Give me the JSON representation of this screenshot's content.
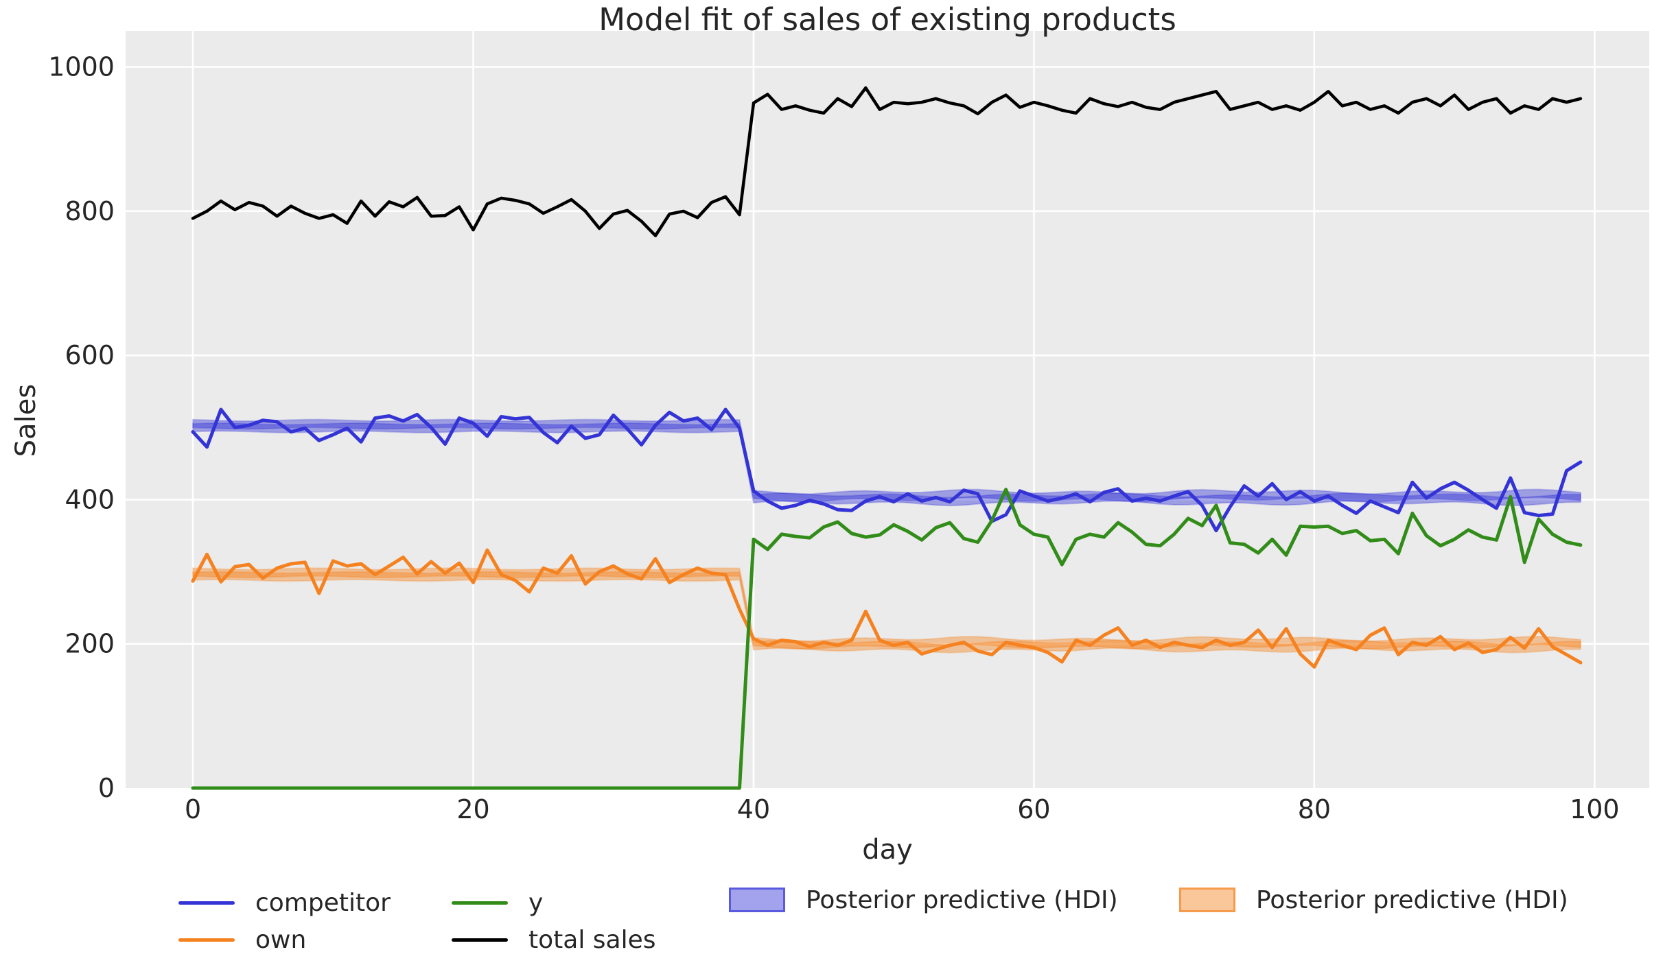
{
  "title": "Model fit of sales of existing products",
  "axes": {
    "xlabel": "day",
    "ylabel": "Sales"
  },
  "colors": {
    "figure_bg": "#ffffff",
    "plot_bg": "#ebebeb",
    "grid": "#ffffff",
    "text": "#262626",
    "competitor": "#3333d6",
    "own": "#f58220",
    "y": "#328c19",
    "total_sales": "#000000"
  },
  "legend": {
    "items": [
      {
        "label": "competitor",
        "type": "line",
        "color": "#3333d6"
      },
      {
        "label": "own",
        "type": "line",
        "color": "#f58220"
      },
      {
        "label": "y",
        "type": "line",
        "color": "#328c19"
      },
      {
        "label": "total sales",
        "type": "line",
        "color": "#000000"
      },
      {
        "label": "Posterior predictive (HDI)",
        "type": "patch",
        "color": "#3333d6"
      },
      {
        "label": "Posterior predictive (HDI)",
        "type": "patch",
        "color": "#f58220"
      }
    ]
  },
  "chart_data": {
    "type": "line",
    "title": "Model fit of sales of existing products",
    "xlabel": "day",
    "ylabel": "Sales",
    "x_ticks": [
      0,
      20,
      40,
      60,
      80,
      100
    ],
    "y_ticks": [
      0,
      200,
      400,
      600,
      800,
      1000
    ],
    "xlim": [
      -4.8,
      103.9
    ],
    "ylim": [
      0,
      1050
    ],
    "grid": true,
    "x": [
      0,
      1,
      2,
      3,
      4,
      5,
      6,
      7,
      8,
      9,
      10,
      11,
      12,
      13,
      14,
      15,
      16,
      17,
      18,
      19,
      20,
      21,
      22,
      23,
      24,
      25,
      26,
      27,
      28,
      29,
      30,
      31,
      32,
      33,
      34,
      35,
      36,
      37,
      38,
      39,
      40,
      41,
      42,
      43,
      44,
      45,
      46,
      47,
      48,
      49,
      50,
      51,
      52,
      53,
      54,
      55,
      56,
      57,
      58,
      59,
      60,
      61,
      62,
      63,
      64,
      65,
      66,
      67,
      68,
      69,
      70,
      71,
      72,
      73,
      74,
      75,
      76,
      77,
      78,
      79,
      80,
      81,
      82,
      83,
      84,
      85,
      86,
      87,
      88,
      89,
      90,
      91,
      92,
      93,
      94,
      95,
      96,
      97,
      98,
      99
    ],
    "series": [
      {
        "name": "competitor",
        "color": "#3333d6",
        "values": [
          494,
          473,
          525,
          500,
          503,
          510,
          508,
          494,
          499,
          482,
          490,
          499,
          480,
          513,
          516,
          509,
          518,
          500,
          477,
          513,
          506,
          488,
          515,
          512,
          514,
          493,
          479,
          502,
          485,
          490,
          517,
          498,
          476,
          503,
          521,
          509,
          513,
          497,
          525,
          499,
          412,
          398,
          388,
          392,
          399,
          394,
          386,
          385,
          398,
          404,
          397,
          408,
          398,
          403,
          397,
          413,
          408,
          370,
          379,
          412,
          405,
          398,
          402,
          408,
          397,
          410,
          415,
          398,
          402,
          398,
          405,
          411,
          392,
          357,
          390,
          419,
          405,
          422,
          400,
          411,
          398,
          405,
          392,
          381,
          398,
          390,
          382,
          424,
          402,
          415,
          424,
          413,
          400,
          388,
          430,
          382,
          378,
          380,
          440,
          452
        ]
      },
      {
        "name": "own",
        "color": "#f58220",
        "values": [
          287,
          324,
          286,
          307,
          310,
          291,
          305,
          311,
          313,
          270,
          315,
          308,
          311,
          296,
          308,
          320,
          297,
          314,
          298,
          312,
          285,
          330,
          296,
          288,
          272,
          305,
          298,
          322,
          283,
          300,
          308,
          297,
          290,
          318,
          285,
          296,
          305,
          298,
          296,
          248,
          207,
          198,
          205,
          203,
          196,
          202,
          198,
          205,
          245,
          205,
          198,
          202,
          186,
          192,
          198,
          202,
          190,
          185,
          202,
          198,
          195,
          188,
          175,
          205,
          198,
          212,
          222,
          198,
          205,
          195,
          202,
          198,
          195,
          205,
          198,
          202,
          219,
          195,
          221,
          186,
          168,
          205,
          198,
          192,
          212,
          222,
          185,
          202,
          198,
          210,
          192,
          201,
          188,
          192,
          209,
          194,
          221,
          196,
          185,
          174
        ]
      },
      {
        "name": "y",
        "color": "#328c19",
        "values": [
          0,
          0,
          0,
          0,
          0,
          0,
          0,
          0,
          0,
          0,
          0,
          0,
          0,
          0,
          0,
          0,
          0,
          0,
          0,
          0,
          0,
          0,
          0,
          0,
          0,
          0,
          0,
          0,
          0,
          0,
          0,
          0,
          0,
          0,
          0,
          0,
          0,
          0,
          0,
          0,
          345,
          331,
          352,
          349,
          347,
          362,
          369,
          353,
          348,
          351,
          365,
          356,
          344,
          361,
          368,
          346,
          341,
          371,
          414,
          365,
          352,
          348,
          310,
          345,
          352,
          348,
          368,
          355,
          338,
          336,
          352,
          374,
          364,
          392,
          340,
          338,
          326,
          345,
          323,
          363,
          362,
          363,
          353,
          357,
          343,
          345,
          325,
          381,
          350,
          336,
          345,
          358,
          348,
          344,
          404,
          313,
          373,
          352,
          341,
          337
        ]
      },
      {
        "name": "total sales",
        "color": "#000000",
        "values": [
          790,
          800,
          814,
          802,
          812,
          807,
          793,
          807,
          797,
          790,
          795,
          783,
          814,
          793,
          813,
          806,
          819,
          793,
          794,
          806,
          774,
          810,
          818,
          815,
          810,
          797,
          806,
          816,
          800,
          776,
          796,
          801,
          786,
          766,
          796,
          800,
          791,
          812,
          820,
          795,
          950,
          962,
          941,
          946,
          940,
          936,
          956,
          945,
          971,
          941,
          951,
          949,
          951,
          956,
          950,
          946,
          935,
          951,
          961,
          944,
          951,
          946,
          940,
          936,
          956,
          949,
          945,
          951,
          944,
          941,
          951,
          956,
          961,
          966,
          941,
          946,
          951,
          941,
          946,
          940,
          951,
          966,
          946,
          951,
          941,
          946,
          936,
          951,
          956,
          946,
          961,
          941,
          951,
          956,
          936,
          946,
          941,
          956,
          951,
          956
        ]
      }
    ],
    "bands": [
      {
        "name": "Posterior predictive (HDI)",
        "series": "competitor",
        "color": "#3333d6",
        "center_days_0_39": 502,
        "center_days_40_99": 403,
        "half_width": 8,
        "switch_day": 40
      },
      {
        "name": "Posterior predictive (HDI)",
        "series": "own",
        "color": "#f58220",
        "center_days_0_39": 296,
        "center_days_40_99": 199,
        "half_width": 8,
        "switch_day": 40
      }
    ],
    "legend_position": "below"
  }
}
